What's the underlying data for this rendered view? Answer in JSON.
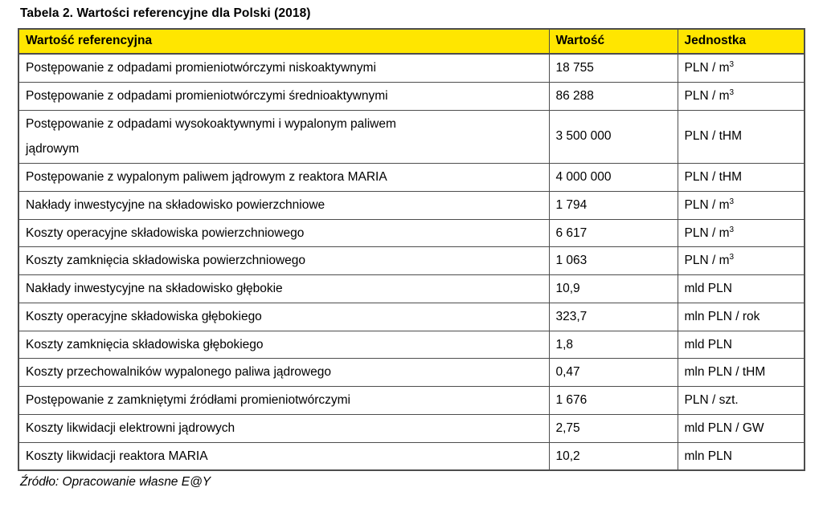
{
  "title": "Tabela 2. Wartości referencyjne dla Polski (2018)",
  "source_note": "Źródło: Opracowanie własne E@Y",
  "colors": {
    "header_bg": "#ffe600",
    "border": "#4d4d4d",
    "text": "#000000"
  },
  "table": {
    "headers": [
      "Wartość referencyjna",
      "Wartość",
      "Jednostka"
    ],
    "rows": [
      {
        "label": "Postępowanie z odpadami promieniotwórczymi niskoaktywnymi",
        "value": "18 755",
        "unit": "PLN / m",
        "unit_sup": "3"
      },
      {
        "label": "Postępowanie z odpadami promieniotwórczymi średnioaktywnymi",
        "value": "86 288",
        "unit": "PLN / m",
        "unit_sup": "3"
      },
      {
        "label": "Postępowanie z odpadami wysokoaktywnymi i wypalonym paliwem\njądrowym",
        "value": "3 500 000",
        "unit": "PLN / tHM",
        "unit_sup": ""
      },
      {
        "label": "Postępowanie z wypalonym paliwem jądrowym z reaktora MARIA",
        "value": "4 000 000",
        "unit": "PLN / tHM",
        "unit_sup": ""
      },
      {
        "label": "Nakłady inwestycyjne na składowisko powierzchniowe",
        "value": "1 794",
        "unit": "PLN / m",
        "unit_sup": "3"
      },
      {
        "label": "Koszty operacyjne składowiska powierzchniowego",
        "value": "6 617",
        "unit": "PLN / m",
        "unit_sup": "3"
      },
      {
        "label": "Koszty zamknięcia składowiska powierzchniowego",
        "value": "1 063",
        "unit": "PLN / m",
        "unit_sup": "3"
      },
      {
        "label": "Nakłady inwestycyjne na składowisko głębokie",
        "value": "10,9",
        "unit": "mld PLN",
        "unit_sup": ""
      },
      {
        "label": "Koszty operacyjne składowiska głębokiego",
        "value": "323,7",
        "unit": "mln PLN / rok",
        "unit_sup": ""
      },
      {
        "label": "Koszty zamknięcia składowiska głębokiego",
        "value": "1,8",
        "unit": "mld PLN",
        "unit_sup": ""
      },
      {
        "label": "Koszty przechowalników wypalonego paliwa jądrowego",
        "value": "0,47",
        "unit": "mln PLN / tHM",
        "unit_sup": ""
      },
      {
        "label": "Postępowanie z zamkniętymi źródłami promieniotwórczymi",
        "value": "1 676",
        "unit": "PLN / szt.",
        "unit_sup": ""
      },
      {
        "label": "Koszty likwidacji elektrowni jądrowych",
        "value": "2,75",
        "unit": "mld PLN / GW",
        "unit_sup": ""
      },
      {
        "label": "Koszty likwidacji reaktora MARIA",
        "value": "10,2",
        "unit": "mln PLN",
        "unit_sup": ""
      }
    ]
  }
}
